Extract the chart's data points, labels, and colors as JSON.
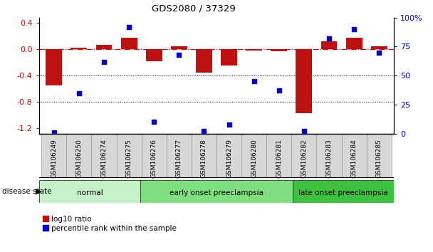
{
  "title": "GDS2080 / 37329",
  "samples": [
    "GSM106249",
    "GSM106250",
    "GSM106274",
    "GSM106275",
    "GSM106276",
    "GSM106277",
    "GSM106278",
    "GSM106279",
    "GSM106280",
    "GSM106281",
    "GSM106282",
    "GSM106283",
    "GSM106284",
    "GSM106285"
  ],
  "log10_ratio": [
    -0.55,
    0.02,
    0.07,
    0.18,
    -0.18,
    0.05,
    -0.35,
    -0.25,
    -0.02,
    -0.03,
    -0.97,
    0.12,
    0.18,
    0.05
  ],
  "percentile_rank": [
    1,
    35,
    62,
    92,
    10,
    68,
    2,
    8,
    45,
    37,
    2,
    82,
    90,
    70
  ],
  "groups": [
    {
      "label": "normal",
      "start": 0,
      "end": 4,
      "color": "#c8f0c8"
    },
    {
      "label": "early onset preeclampsia",
      "start": 4,
      "end": 10,
      "color": "#80e080"
    },
    {
      "label": "late onset preeclampsia",
      "start": 10,
      "end": 14,
      "color": "#40c040"
    }
  ],
  "ylim_left": [
    -1.28,
    0.48
  ],
  "ylim_right": [
    0,
    100
  ],
  "yticks_left": [
    -1.2,
    -0.8,
    -0.4,
    0.0,
    0.4
  ],
  "yticks_right": [
    0,
    25,
    50,
    75,
    100
  ],
  "ytick_labels_right": [
    "0",
    "25",
    "50",
    "75",
    "100%"
  ],
  "hline_y": 0.0,
  "dotted_lines": [
    -0.4,
    -0.8
  ],
  "bar_color": "#bb1111",
  "scatter_color": "#0000cc",
  "background_color": "#ffffff",
  "legend_items": [
    "log10 ratio",
    "percentile rank within the sample"
  ],
  "disease_state_label": "disease state"
}
